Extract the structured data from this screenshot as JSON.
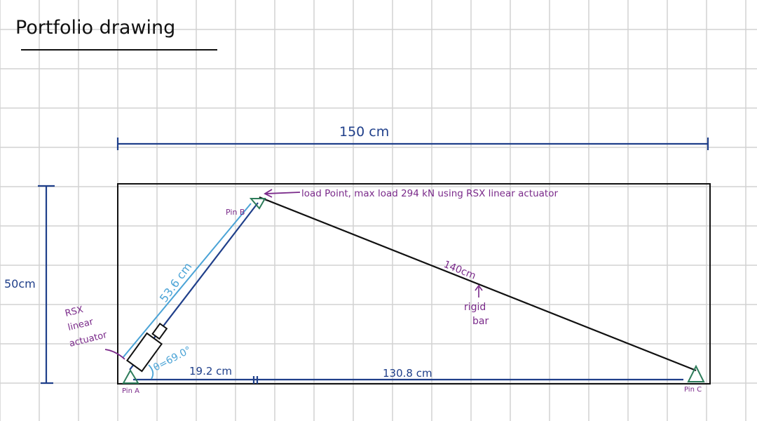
{
  "title": "Portfolio drawing",
  "dimensions": {
    "width_label": "150 cm",
    "height_label": "50cm",
    "segment_left": "19.2 cm",
    "segment_right": "130.8 cm"
  },
  "labels": {
    "pin_a": "Pin A",
    "pin_b": "Pin B",
    "pin_c": "Pin C",
    "actuator_length": "53.6 cm",
    "angle": "θ=69.0°",
    "bar_length": "140cm",
    "rigid_bar": [
      "rigid",
      "bar"
    ],
    "actuator_name": [
      "RSX",
      "linear",
      "actuator"
    ],
    "load_point": "load Point, max load 294 kN using RSX linear actuator"
  },
  "colors": {
    "grid": "#d2d2d2",
    "dimension": "#1f3f8a",
    "actuator_dim": "#4aa3d6",
    "annotation": "#7a2a8a",
    "pin": "#2e7d5b",
    "ink": "#111111"
  }
}
